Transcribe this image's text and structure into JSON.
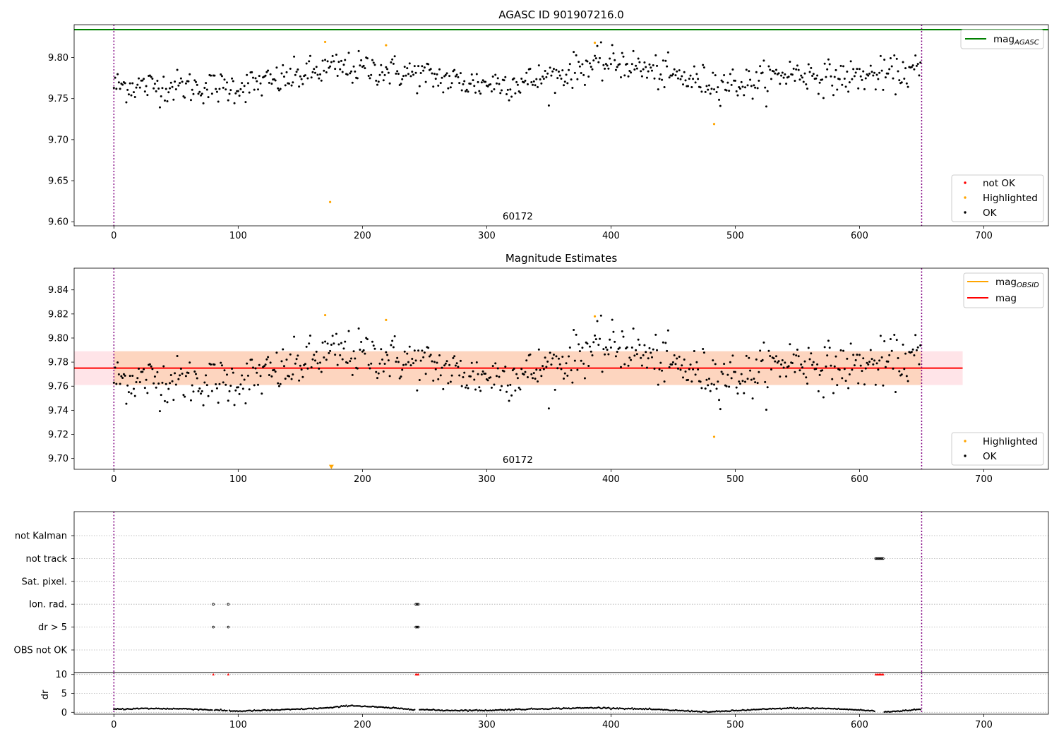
{
  "colors": {
    "ok": "#000000",
    "highlighted": "#ffa500",
    "not_ok": "#ff0000",
    "mag_agasc": "#008000",
    "mag": "#ff0000",
    "mag_obsid": "#ffa500",
    "band_outer": "#ffe4e8",
    "band_inner": "#fdd5bf",
    "obs_boundary": "#800080"
  },
  "chart_data": [
    {
      "type": "scatter",
      "title": "AGASC ID 901907216.0",
      "xlim": [
        -32,
        752
      ],
      "ylim": [
        9.595,
        9.84
      ],
      "xticks": [
        0,
        100,
        200,
        300,
        400,
        500,
        600,
        700
      ],
      "yticks": [
        9.6,
        9.65,
        9.7,
        9.75,
        9.8
      ],
      "ytick_labels": [
        "9.60",
        "9.65",
        "9.70",
        "9.75",
        "9.80"
      ],
      "obs_boundaries": [
        0,
        650
      ],
      "obsid_label": "60172",
      "obsid_label_x": 325,
      "mag_agasc": 9.834,
      "legend_top": {
        "position": "top-right",
        "entries": [
          {
            "label": "mag",
            "sub": "AGASC"
          }
        ]
      },
      "legend_bottom": {
        "position": "lower-right",
        "entries": [
          "not OK",
          "Highlighted",
          "OK"
        ]
      },
      "ok_series": {
        "name": "OK",
        "n": 650,
        "base": 9.771,
        "noise": 0.011,
        "trend": [
          [
            0,
            9.766
          ],
          [
            50,
            9.765
          ],
          [
            90,
            9.763
          ],
          [
            130,
            9.771
          ],
          [
            175,
            9.787
          ],
          [
            210,
            9.786
          ],
          [
            250,
            9.778
          ],
          [
            290,
            9.768
          ],
          [
            330,
            9.77
          ],
          [
            360,
            9.779
          ],
          [
            380,
            9.79
          ],
          [
            410,
            9.794
          ],
          [
            430,
            9.784
          ],
          [
            470,
            9.771
          ],
          [
            510,
            9.768
          ],
          [
            545,
            9.782
          ],
          [
            580,
            9.775
          ],
          [
            620,
            9.779
          ],
          [
            650,
            9.784
          ]
        ]
      },
      "highlighted_points": [
        [
          170,
          9.819
        ],
        [
          174,
          9.624
        ],
        [
          219,
          9.815
        ],
        [
          387,
          9.818
        ],
        [
          483,
          9.719
        ]
      ]
    },
    {
      "type": "scatter",
      "title": "Magnitude Estimates",
      "xlim": [
        -32,
        752
      ],
      "ylim": [
        9.691,
        9.858
      ],
      "xticks": [
        0,
        100,
        200,
        300,
        400,
        500,
        600,
        700
      ],
      "yticks": [
        9.7,
        9.72,
        9.74,
        9.76,
        9.78,
        9.8,
        9.82,
        9.84
      ],
      "ytick_labels": [
        "9.70",
        "9.72",
        "9.74",
        "9.76",
        "9.78",
        "9.80",
        "9.82",
        "9.84"
      ],
      "obs_boundaries": [
        0,
        650
      ],
      "obsid_label": "60172",
      "obsid_label_x": 325,
      "mag": 9.775,
      "mag_band": [
        9.761,
        9.789
      ],
      "mag_range_x": [
        -32,
        683
      ],
      "mag_obsid_range_x": [
        0,
        650
      ],
      "legend_top": {
        "position": "top-right",
        "entries": [
          {
            "label": "mag",
            "sub": "OBSID"
          },
          {
            "label": "mag"
          }
        ]
      },
      "legend_bottom": {
        "position": "lower-right",
        "entries": [
          "Highlighted",
          "OK"
        ]
      },
      "highlighted_points": [
        [
          170,
          9.819
        ],
        [
          219,
          9.815
        ],
        [
          387,
          9.818
        ],
        [
          483,
          9.718
        ]
      ],
      "offscale_points": [
        [
          175,
          9.693
        ]
      ]
    },
    {
      "type": "scatter",
      "title": "",
      "xlim": [
        -32,
        752
      ],
      "xticks": [
        0,
        100,
        200,
        300,
        400,
        500,
        600,
        700
      ],
      "flag_rows": [
        "not Kalman",
        "not track",
        "Sat. pixel.",
        "Ion. rad.",
        "dr > 5",
        "OBS not OK"
      ],
      "obs_boundaries": [
        0,
        650
      ],
      "flags": {
        "not track": [
          613,
          614,
          615,
          616,
          617,
          618,
          619
        ],
        "Ion. rad.": [
          80,
          92,
          243,
          244,
          245
        ],
        "dr > 5": [
          80,
          92,
          243,
          244,
          245
        ]
      },
      "dr_ylabel": "dr",
      "dr_ylim": [
        -0.5,
        10.5
      ],
      "dr_yticks": [
        0,
        5,
        10
      ],
      "dr_spikes": [
        80,
        92,
        243,
        244,
        245,
        613,
        614,
        615,
        616,
        617,
        618,
        619
      ],
      "dr_trend": [
        [
          0,
          0.8
        ],
        [
          25,
          1.0
        ],
        [
          60,
          0.9
        ],
        [
          100,
          0.3
        ],
        [
          140,
          0.7
        ],
        [
          175,
          1.2
        ],
        [
          190,
          1.8
        ],
        [
          215,
          1.3
        ],
        [
          240,
          0.8
        ],
        [
          265,
          0.5
        ],
        [
          300,
          0.5
        ],
        [
          340,
          0.9
        ],
        [
          390,
          1.2
        ],
        [
          430,
          0.8
        ],
        [
          480,
          0.1
        ],
        [
          510,
          0.6
        ],
        [
          545,
          1.1
        ],
        [
          575,
          1.0
        ],
        [
          600,
          0.6
        ],
        [
          622,
          0.1
        ],
        [
          650,
          0.8
        ]
      ]
    }
  ]
}
